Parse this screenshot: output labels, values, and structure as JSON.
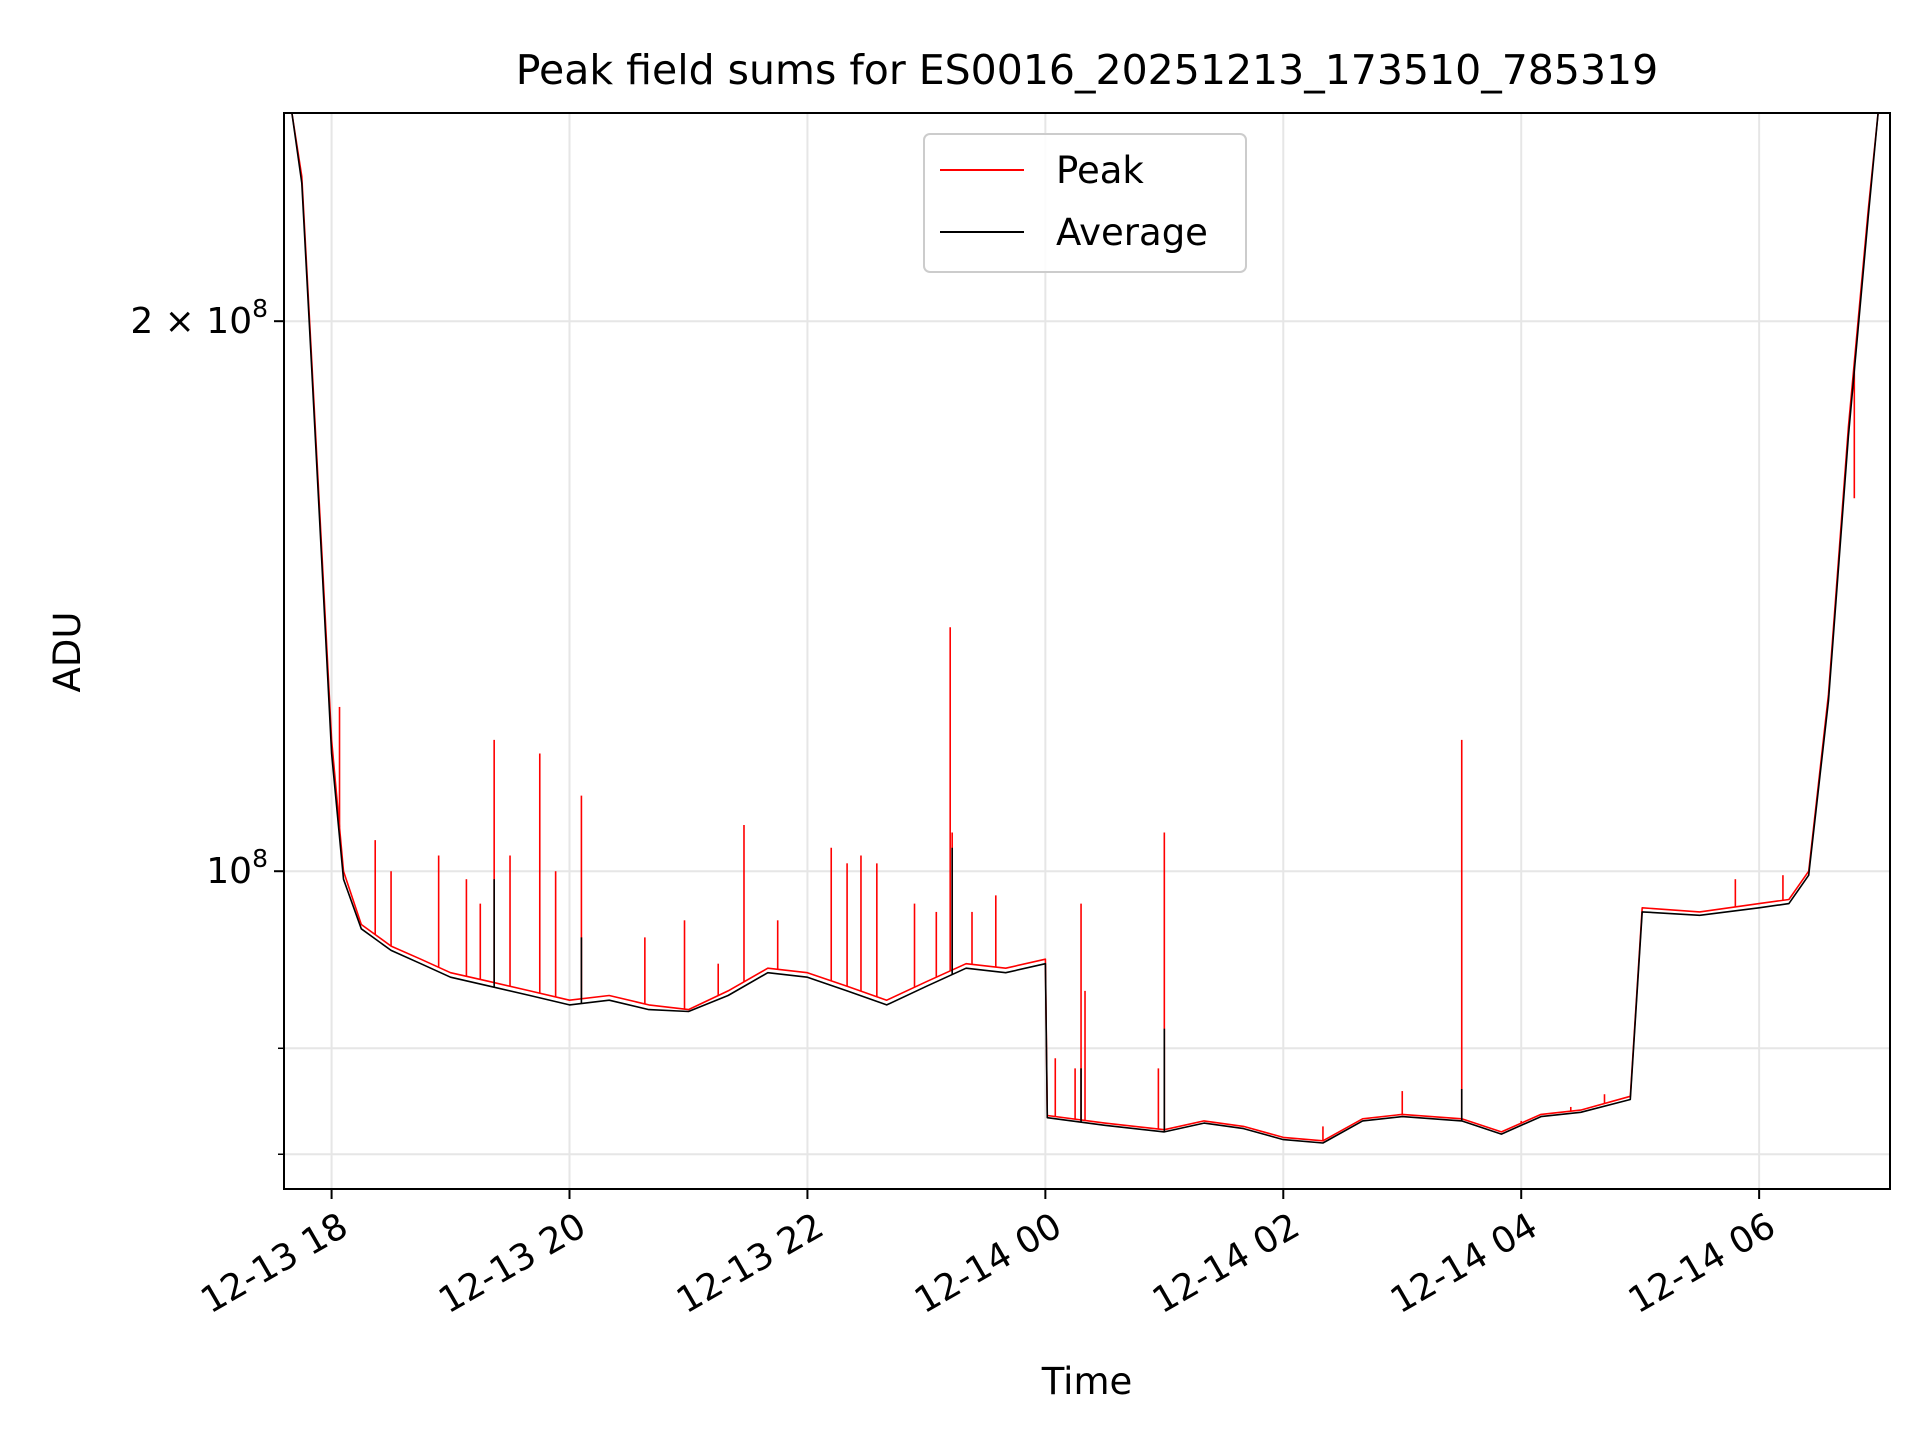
{
  "chart_data": {
    "type": "line",
    "title": "Peak field sums for ES0016_20251213_173510_785319",
    "xlabel": "Time",
    "ylabel": "ADU",
    "yscale": "log",
    "xlim": [
      "2025-12-13 17:36",
      "2025-12-14 07:06"
    ],
    "ylim": [
      67000000,
      260000000
    ],
    "x_ticks": [
      {
        "t": "2025-12-13 18:00",
        "label": "12-13 18"
      },
      {
        "t": "2025-12-13 20:00",
        "label": "12-13 20"
      },
      {
        "t": "2025-12-13 22:00",
        "label": "12-13 22"
      },
      {
        "t": "2025-12-14 00:00",
        "label": "12-14 00"
      },
      {
        "t": "2025-12-14 02:00",
        "label": "12-14 02"
      },
      {
        "t": "2025-12-14 04:00",
        "label": "12-14 04"
      },
      {
        "t": "2025-12-14 06:00",
        "label": "12-14 06"
      }
    ],
    "y_ticks": [
      {
        "v": 200000000,
        "base": "2 × 10",
        "exp": "8"
      },
      {
        "v": 100000000,
        "base": "10",
        "exp": "8"
      }
    ],
    "y_minor_ticks": [
      80000000,
      70000000
    ],
    "grid": true,
    "legend_position": "top-center",
    "series": [
      {
        "name": "Peak",
        "color": "#ff0000",
        "points": [
          [
            "2025-12-13 17:40",
            265000000
          ],
          [
            "2025-12-13 17:45",
            240000000
          ],
          [
            "2025-12-13 17:50",
            190000000
          ],
          [
            "2025-12-13 17:55",
            150000000
          ],
          [
            "2025-12-13 18:00",
            118000000
          ],
          [
            "2025-12-13 18:06",
            100000000
          ],
          [
            "2025-12-13 18:15",
            93500000
          ],
          [
            "2025-12-13 18:30",
            91000000
          ],
          [
            "2025-12-13 18:45",
            89500000
          ],
          [
            "2025-12-13 19:00",
            88000000
          ],
          [
            "2025-12-13 19:20",
            87000000
          ],
          [
            "2025-12-13 19:40",
            86000000
          ],
          [
            "2025-12-13 20:00",
            85000000
          ],
          [
            "2025-12-13 20:20",
            85500000
          ],
          [
            "2025-12-13 20:40",
            84500000
          ],
          [
            "2025-12-13 21:00",
            84000000
          ],
          [
            "2025-12-13 21:20",
            86000000
          ],
          [
            "2025-12-13 21:40",
            88500000
          ],
          [
            "2025-12-13 22:00",
            88000000
          ],
          [
            "2025-12-13 22:20",
            86500000
          ],
          [
            "2025-12-13 22:40",
            85000000
          ],
          [
            "2025-12-13 23:00",
            87000000
          ],
          [
            "2025-12-13 23:20",
            89000000
          ],
          [
            "2025-12-13 23:40",
            88500000
          ],
          [
            "2025-12-14 00:00",
            89500000
          ],
          [
            "2025-12-14 00:01",
            73500000
          ],
          [
            "2025-12-14 00:30",
            72800000
          ],
          [
            "2025-12-14 01:00",
            72200000
          ],
          [
            "2025-12-14 01:20",
            73000000
          ],
          [
            "2025-12-14 01:40",
            72500000
          ],
          [
            "2025-12-14 02:00",
            71500000
          ],
          [
            "2025-12-14 02:20",
            71200000
          ],
          [
            "2025-12-14 02:40",
            73200000
          ],
          [
            "2025-12-14 03:00",
            73600000
          ],
          [
            "2025-12-14 03:30",
            73200000
          ],
          [
            "2025-12-14 03:50",
            72000000
          ],
          [
            "2025-12-14 04:10",
            73600000
          ],
          [
            "2025-12-14 04:30",
            74000000
          ],
          [
            "2025-12-14 04:55",
            75300000
          ],
          [
            "2025-12-14 05:01",
            95500000
          ],
          [
            "2025-12-14 05:30",
            95000000
          ],
          [
            "2025-12-14 06:00",
            96000000
          ],
          [
            "2025-12-14 06:15",
            96500000
          ],
          [
            "2025-12-14 06:25",
            100000000
          ],
          [
            "2025-12-14 06:35",
            125000000
          ],
          [
            "2025-12-14 06:45",
            175000000
          ],
          [
            "2025-12-14 06:55",
            230000000
          ],
          [
            "2025-12-14 07:00",
            262000000
          ]
        ],
        "spikes": [
          [
            "2025-12-13 18:04",
            123000000
          ],
          [
            "2025-12-13 18:22",
            104000000
          ],
          [
            "2025-12-13 18:30",
            100000000
          ],
          [
            "2025-12-13 18:54",
            102000000
          ],
          [
            "2025-12-13 19:08",
            99000000
          ],
          [
            "2025-12-13 19:15",
            96000000
          ],
          [
            "2025-12-13 19:22",
            118000000
          ],
          [
            "2025-12-13 19:30",
            102000000
          ],
          [
            "2025-12-13 19:45",
            116000000
          ],
          [
            "2025-12-13 19:53",
            100000000
          ],
          [
            "2025-12-13 20:06",
            110000000
          ],
          [
            "2025-12-13 20:38",
            92000000
          ],
          [
            "2025-12-13 20:58",
            94000000
          ],
          [
            "2025-12-13 21:15",
            89000000
          ],
          [
            "2025-12-13 21:28",
            106000000
          ],
          [
            "2025-12-13 21:45",
            94000000
          ],
          [
            "2025-12-13 22:12",
            103000000
          ],
          [
            "2025-12-13 22:20",
            101000000
          ],
          [
            "2025-12-13 22:27",
            102000000
          ],
          [
            "2025-12-13 22:35",
            101000000
          ],
          [
            "2025-12-13 22:54",
            96000000
          ],
          [
            "2025-12-13 23:05",
            95000000
          ],
          [
            "2025-12-13 23:12",
            136000000
          ],
          [
            "2025-12-13 23:13",
            105000000
          ],
          [
            "2025-12-13 23:23",
            95000000
          ],
          [
            "2025-12-13 23:35",
            97000000
          ],
          [
            "2025-12-14 00:05",
            79000000
          ],
          [
            "2025-12-14 00:15",
            78000000
          ],
          [
            "2025-12-14 00:18",
            96000000
          ],
          [
            "2025-12-14 00:20",
            86000000
          ],
          [
            "2025-12-14 00:57",
            78000000
          ],
          [
            "2025-12-14 01:00",
            105000000
          ],
          [
            "2025-12-14 02:20",
            72500000
          ],
          [
            "2025-12-14 03:00",
            75800000
          ],
          [
            "2025-12-14 03:30",
            118000000
          ],
          [
            "2025-12-14 04:00",
            73000000
          ],
          [
            "2025-12-14 04:25",
            74300000
          ],
          [
            "2025-12-14 04:42",
            75500000
          ],
          [
            "2025-12-14 05:48",
            99000000
          ],
          [
            "2025-12-14 06:12",
            99500000
          ],
          [
            "2025-12-14 06:48",
            160000000
          ]
        ]
      },
      {
        "name": "Average",
        "color": "#000000",
        "points": [
          [
            "2025-12-13 17:40",
            265000000
          ],
          [
            "2025-12-13 17:45",
            238000000
          ],
          [
            "2025-12-13 17:50",
            188000000
          ],
          [
            "2025-12-13 17:55",
            148000000
          ],
          [
            "2025-12-13 18:00",
            116000000
          ],
          [
            "2025-12-13 18:06",
            99000000
          ],
          [
            "2025-12-13 18:15",
            93000000
          ],
          [
            "2025-12-13 18:30",
            90500000
          ],
          [
            "2025-12-13 18:45",
            89000000
          ],
          [
            "2025-12-13 19:00",
            87500000
          ],
          [
            "2025-12-13 19:20",
            86500000
          ],
          [
            "2025-12-13 19:40",
            85500000
          ],
          [
            "2025-12-13 20:00",
            84500000
          ],
          [
            "2025-12-13 20:20",
            85000000
          ],
          [
            "2025-12-13 20:40",
            84000000
          ],
          [
            "2025-12-13 21:00",
            83800000
          ],
          [
            "2025-12-13 21:20",
            85500000
          ],
          [
            "2025-12-13 21:40",
            88000000
          ],
          [
            "2025-12-13 22:00",
            87500000
          ],
          [
            "2025-12-13 22:20",
            86000000
          ],
          [
            "2025-12-13 22:40",
            84500000
          ],
          [
            "2025-12-13 23:00",
            86500000
          ],
          [
            "2025-12-13 23:20",
            88500000
          ],
          [
            "2025-12-13 23:40",
            88000000
          ],
          [
            "2025-12-14 00:00",
            89000000
          ],
          [
            "2025-12-14 00:01",
            73300000
          ],
          [
            "2025-12-14 00:30",
            72600000
          ],
          [
            "2025-12-14 01:00",
            72000000
          ],
          [
            "2025-12-14 01:20",
            72800000
          ],
          [
            "2025-12-14 01:40",
            72300000
          ],
          [
            "2025-12-14 02:00",
            71300000
          ],
          [
            "2025-12-14 02:20",
            71000000
          ],
          [
            "2025-12-14 02:40",
            73000000
          ],
          [
            "2025-12-14 03:00",
            73400000
          ],
          [
            "2025-12-14 03:30",
            73000000
          ],
          [
            "2025-12-14 03:50",
            71800000
          ],
          [
            "2025-12-14 04:10",
            73400000
          ],
          [
            "2025-12-14 04:30",
            73800000
          ],
          [
            "2025-12-14 04:55",
            75000000
          ],
          [
            "2025-12-14 05:01",
            95000000
          ],
          [
            "2025-12-14 05:30",
            94600000
          ],
          [
            "2025-12-14 06:00",
            95500000
          ],
          [
            "2025-12-14 06:15",
            96000000
          ],
          [
            "2025-12-14 06:25",
            99500000
          ],
          [
            "2025-12-14 06:35",
            124000000
          ],
          [
            "2025-12-14 06:45",
            173000000
          ],
          [
            "2025-12-14 06:55",
            228000000
          ],
          [
            "2025-12-14 07:00",
            262000000
          ]
        ],
        "spikes": [
          [
            "2025-12-13 23:13",
            103000000
          ],
          [
            "2025-12-14 01:00",
            82000000
          ],
          [
            "2025-12-14 03:30",
            76000000
          ],
          [
            "2025-12-13 19:22",
            99000000
          ],
          [
            "2025-12-13 20:06",
            92000000
          ],
          [
            "2025-12-14 00:18",
            78000000
          ]
        ]
      }
    ]
  }
}
